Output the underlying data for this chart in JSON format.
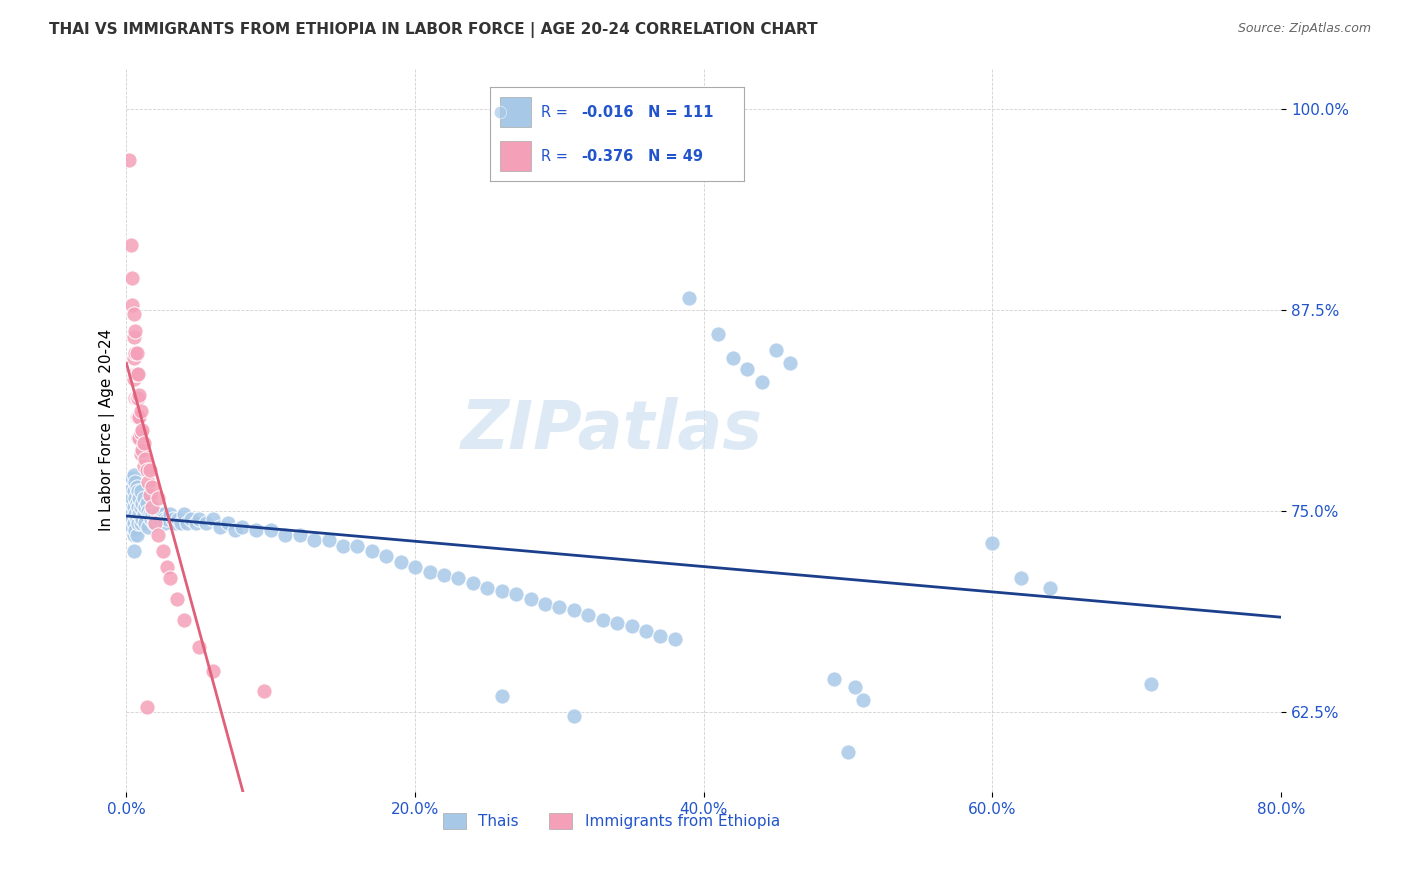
{
  "title": "THAI VS IMMIGRANTS FROM ETHIOPIA IN LABOR FORCE | AGE 20-24 CORRELATION CHART",
  "source_text": "Source: ZipAtlas.com",
  "ylabel": "In Labor Force | Age 20-24",
  "x_min": 0.0,
  "x_max": 0.8,
  "y_min": 0.575,
  "y_max": 1.025,
  "ytick_values": [
    0.625,
    0.75,
    0.875,
    1.0
  ],
  "xtick_values": [
    0.0,
    0.2,
    0.4,
    0.6,
    0.8
  ],
  "watermark": "ZIPatlas",
  "thai_color": "#a8c8e8",
  "ethiopia_color": "#f4a0b8",
  "thai_line_color": "#1c3f8c",
  "ethiopia_line_color": "#e0607a",
  "dashed_line_color": "#d0a0a8",
  "legend_text_color": "#2255cc",
  "legend_value_color": "#2255cc",
  "thai_points": [
    [
      0.002,
      0.762
    ],
    [
      0.003,
      0.755
    ],
    [
      0.003,
      0.748
    ],
    [
      0.004,
      0.77
    ],
    [
      0.004,
      0.758
    ],
    [
      0.004,
      0.745
    ],
    [
      0.004,
      0.74
    ],
    [
      0.005,
      0.772
    ],
    [
      0.005,
      0.762
    ],
    [
      0.005,
      0.752
    ],
    [
      0.005,
      0.742
    ],
    [
      0.005,
      0.735
    ],
    [
      0.005,
      0.725
    ],
    [
      0.006,
      0.768
    ],
    [
      0.006,
      0.758
    ],
    [
      0.006,
      0.748
    ],
    [
      0.006,
      0.738
    ],
    [
      0.007,
      0.765
    ],
    [
      0.007,
      0.755
    ],
    [
      0.007,
      0.745
    ],
    [
      0.007,
      0.735
    ],
    [
      0.008,
      0.762
    ],
    [
      0.008,
      0.752
    ],
    [
      0.008,
      0.742
    ],
    [
      0.009,
      0.758
    ],
    [
      0.009,
      0.748
    ],
    [
      0.01,
      0.762
    ],
    [
      0.01,
      0.752
    ],
    [
      0.01,
      0.742
    ],
    [
      0.011,
      0.755
    ],
    [
      0.011,
      0.745
    ],
    [
      0.012,
      0.758
    ],
    [
      0.012,
      0.748
    ],
    [
      0.013,
      0.752
    ],
    [
      0.013,
      0.742
    ],
    [
      0.014,
      0.755
    ],
    [
      0.015,
      0.75
    ],
    [
      0.015,
      0.74
    ],
    [
      0.016,
      0.748
    ],
    [
      0.017,
      0.745
    ],
    [
      0.018,
      0.748
    ],
    [
      0.019,
      0.742
    ],
    [
      0.02,
      0.748
    ],
    [
      0.021,
      0.745
    ],
    [
      0.022,
      0.748
    ],
    [
      0.023,
      0.745
    ],
    [
      0.025,
      0.748
    ],
    [
      0.026,
      0.745
    ],
    [
      0.027,
      0.742
    ],
    [
      0.028,
      0.745
    ],
    [
      0.03,
      0.748
    ],
    [
      0.032,
      0.745
    ],
    [
      0.034,
      0.742
    ],
    [
      0.036,
      0.745
    ],
    [
      0.038,
      0.742
    ],
    [
      0.04,
      0.748
    ],
    [
      0.042,
      0.742
    ],
    [
      0.045,
      0.745
    ],
    [
      0.048,
      0.742
    ],
    [
      0.05,
      0.745
    ],
    [
      0.055,
      0.742
    ],
    [
      0.06,
      0.745
    ],
    [
      0.065,
      0.74
    ],
    [
      0.07,
      0.742
    ],
    [
      0.075,
      0.738
    ],
    [
      0.08,
      0.74
    ],
    [
      0.09,
      0.738
    ],
    [
      0.1,
      0.738
    ],
    [
      0.11,
      0.735
    ],
    [
      0.12,
      0.735
    ],
    [
      0.13,
      0.732
    ],
    [
      0.14,
      0.732
    ],
    [
      0.15,
      0.728
    ],
    [
      0.16,
      0.728
    ],
    [
      0.17,
      0.725
    ],
    [
      0.18,
      0.722
    ],
    [
      0.19,
      0.718
    ],
    [
      0.2,
      0.715
    ],
    [
      0.21,
      0.712
    ],
    [
      0.22,
      0.71
    ],
    [
      0.23,
      0.708
    ],
    [
      0.24,
      0.705
    ],
    [
      0.25,
      0.702
    ],
    [
      0.26,
      0.7
    ],
    [
      0.27,
      0.698
    ],
    [
      0.28,
      0.695
    ],
    [
      0.29,
      0.692
    ],
    [
      0.3,
      0.69
    ],
    [
      0.31,
      0.688
    ],
    [
      0.32,
      0.685
    ],
    [
      0.33,
      0.682
    ],
    [
      0.34,
      0.68
    ],
    [
      0.35,
      0.678
    ],
    [
      0.36,
      0.675
    ],
    [
      0.37,
      0.672
    ],
    [
      0.38,
      0.67
    ],
    [
      0.26,
      0.635
    ],
    [
      0.31,
      0.622
    ],
    [
      0.39,
      0.882
    ],
    [
      0.41,
      0.86
    ],
    [
      0.42,
      0.845
    ],
    [
      0.43,
      0.838
    ],
    [
      0.44,
      0.83
    ],
    [
      0.45,
      0.85
    ],
    [
      0.46,
      0.842
    ],
    [
      0.49,
      0.645
    ],
    [
      0.5,
      0.6
    ],
    [
      0.505,
      0.64
    ],
    [
      0.51,
      0.632
    ],
    [
      0.6,
      0.73
    ],
    [
      0.62,
      0.708
    ],
    [
      0.64,
      0.702
    ],
    [
      0.71,
      0.642
    ]
  ],
  "ethiopia_points": [
    [
      0.002,
      0.968
    ],
    [
      0.003,
      0.915
    ],
    [
      0.004,
      0.895
    ],
    [
      0.004,
      0.878
    ],
    [
      0.005,
      0.872
    ],
    [
      0.005,
      0.858
    ],
    [
      0.005,
      0.845
    ],
    [
      0.005,
      0.832
    ],
    [
      0.006,
      0.862
    ],
    [
      0.006,
      0.848
    ],
    [
      0.006,
      0.835
    ],
    [
      0.006,
      0.82
    ],
    [
      0.007,
      0.848
    ],
    [
      0.007,
      0.835
    ],
    [
      0.007,
      0.82
    ],
    [
      0.007,
      0.808
    ],
    [
      0.008,
      0.835
    ],
    [
      0.008,
      0.82
    ],
    [
      0.008,
      0.808
    ],
    [
      0.008,
      0.795
    ],
    [
      0.009,
      0.822
    ],
    [
      0.009,
      0.808
    ],
    [
      0.009,
      0.795
    ],
    [
      0.01,
      0.812
    ],
    [
      0.01,
      0.798
    ],
    [
      0.01,
      0.785
    ],
    [
      0.011,
      0.8
    ],
    [
      0.011,
      0.788
    ],
    [
      0.012,
      0.792
    ],
    [
      0.012,
      0.778
    ],
    [
      0.013,
      0.782
    ],
    [
      0.014,
      0.775
    ],
    [
      0.015,
      0.768
    ],
    [
      0.016,
      0.76
    ],
    [
      0.018,
      0.752
    ],
    [
      0.02,
      0.742
    ],
    [
      0.022,
      0.735
    ],
    [
      0.025,
      0.725
    ],
    [
      0.028,
      0.715
    ],
    [
      0.03,
      0.708
    ],
    [
      0.035,
      0.695
    ],
    [
      0.04,
      0.682
    ],
    [
      0.05,
      0.665
    ],
    [
      0.06,
      0.65
    ],
    [
      0.014,
      0.628
    ],
    [
      0.095,
      0.638
    ],
    [
      0.016,
      0.775
    ],
    [
      0.018,
      0.765
    ],
    [
      0.022,
      0.758
    ]
  ]
}
